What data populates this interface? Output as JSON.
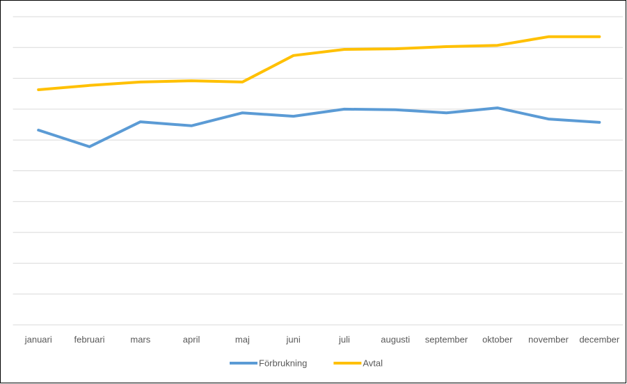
{
  "chart_data": {
    "type": "line",
    "categories": [
      "januari",
      "februari",
      "mars",
      "april",
      "maj",
      "juni",
      "juli",
      "augusti",
      "september",
      "oktober",
      "november",
      "december"
    ],
    "series": [
      {
        "name": "Förbrukning",
        "color": "#5b9bd5",
        "values": [
          6.32,
          5.78,
          6.59,
          6.46,
          6.88,
          6.77,
          7.0,
          6.98,
          6.88,
          7.04,
          6.68,
          6.57
        ]
      },
      {
        "name": "Avtal",
        "color": "#ffc000",
        "values": [
          7.63,
          7.77,
          7.88,
          7.92,
          7.88,
          8.74,
          8.94,
          8.96,
          9.03,
          9.07,
          9.35,
          9.35
        ]
      }
    ],
    "ylim": [
      0,
      10
    ],
    "yticks": [
      0,
      1,
      2,
      3,
      4,
      5,
      6,
      7,
      8,
      9,
      10
    ],
    "grid": true,
    "legend": "bottom"
  }
}
